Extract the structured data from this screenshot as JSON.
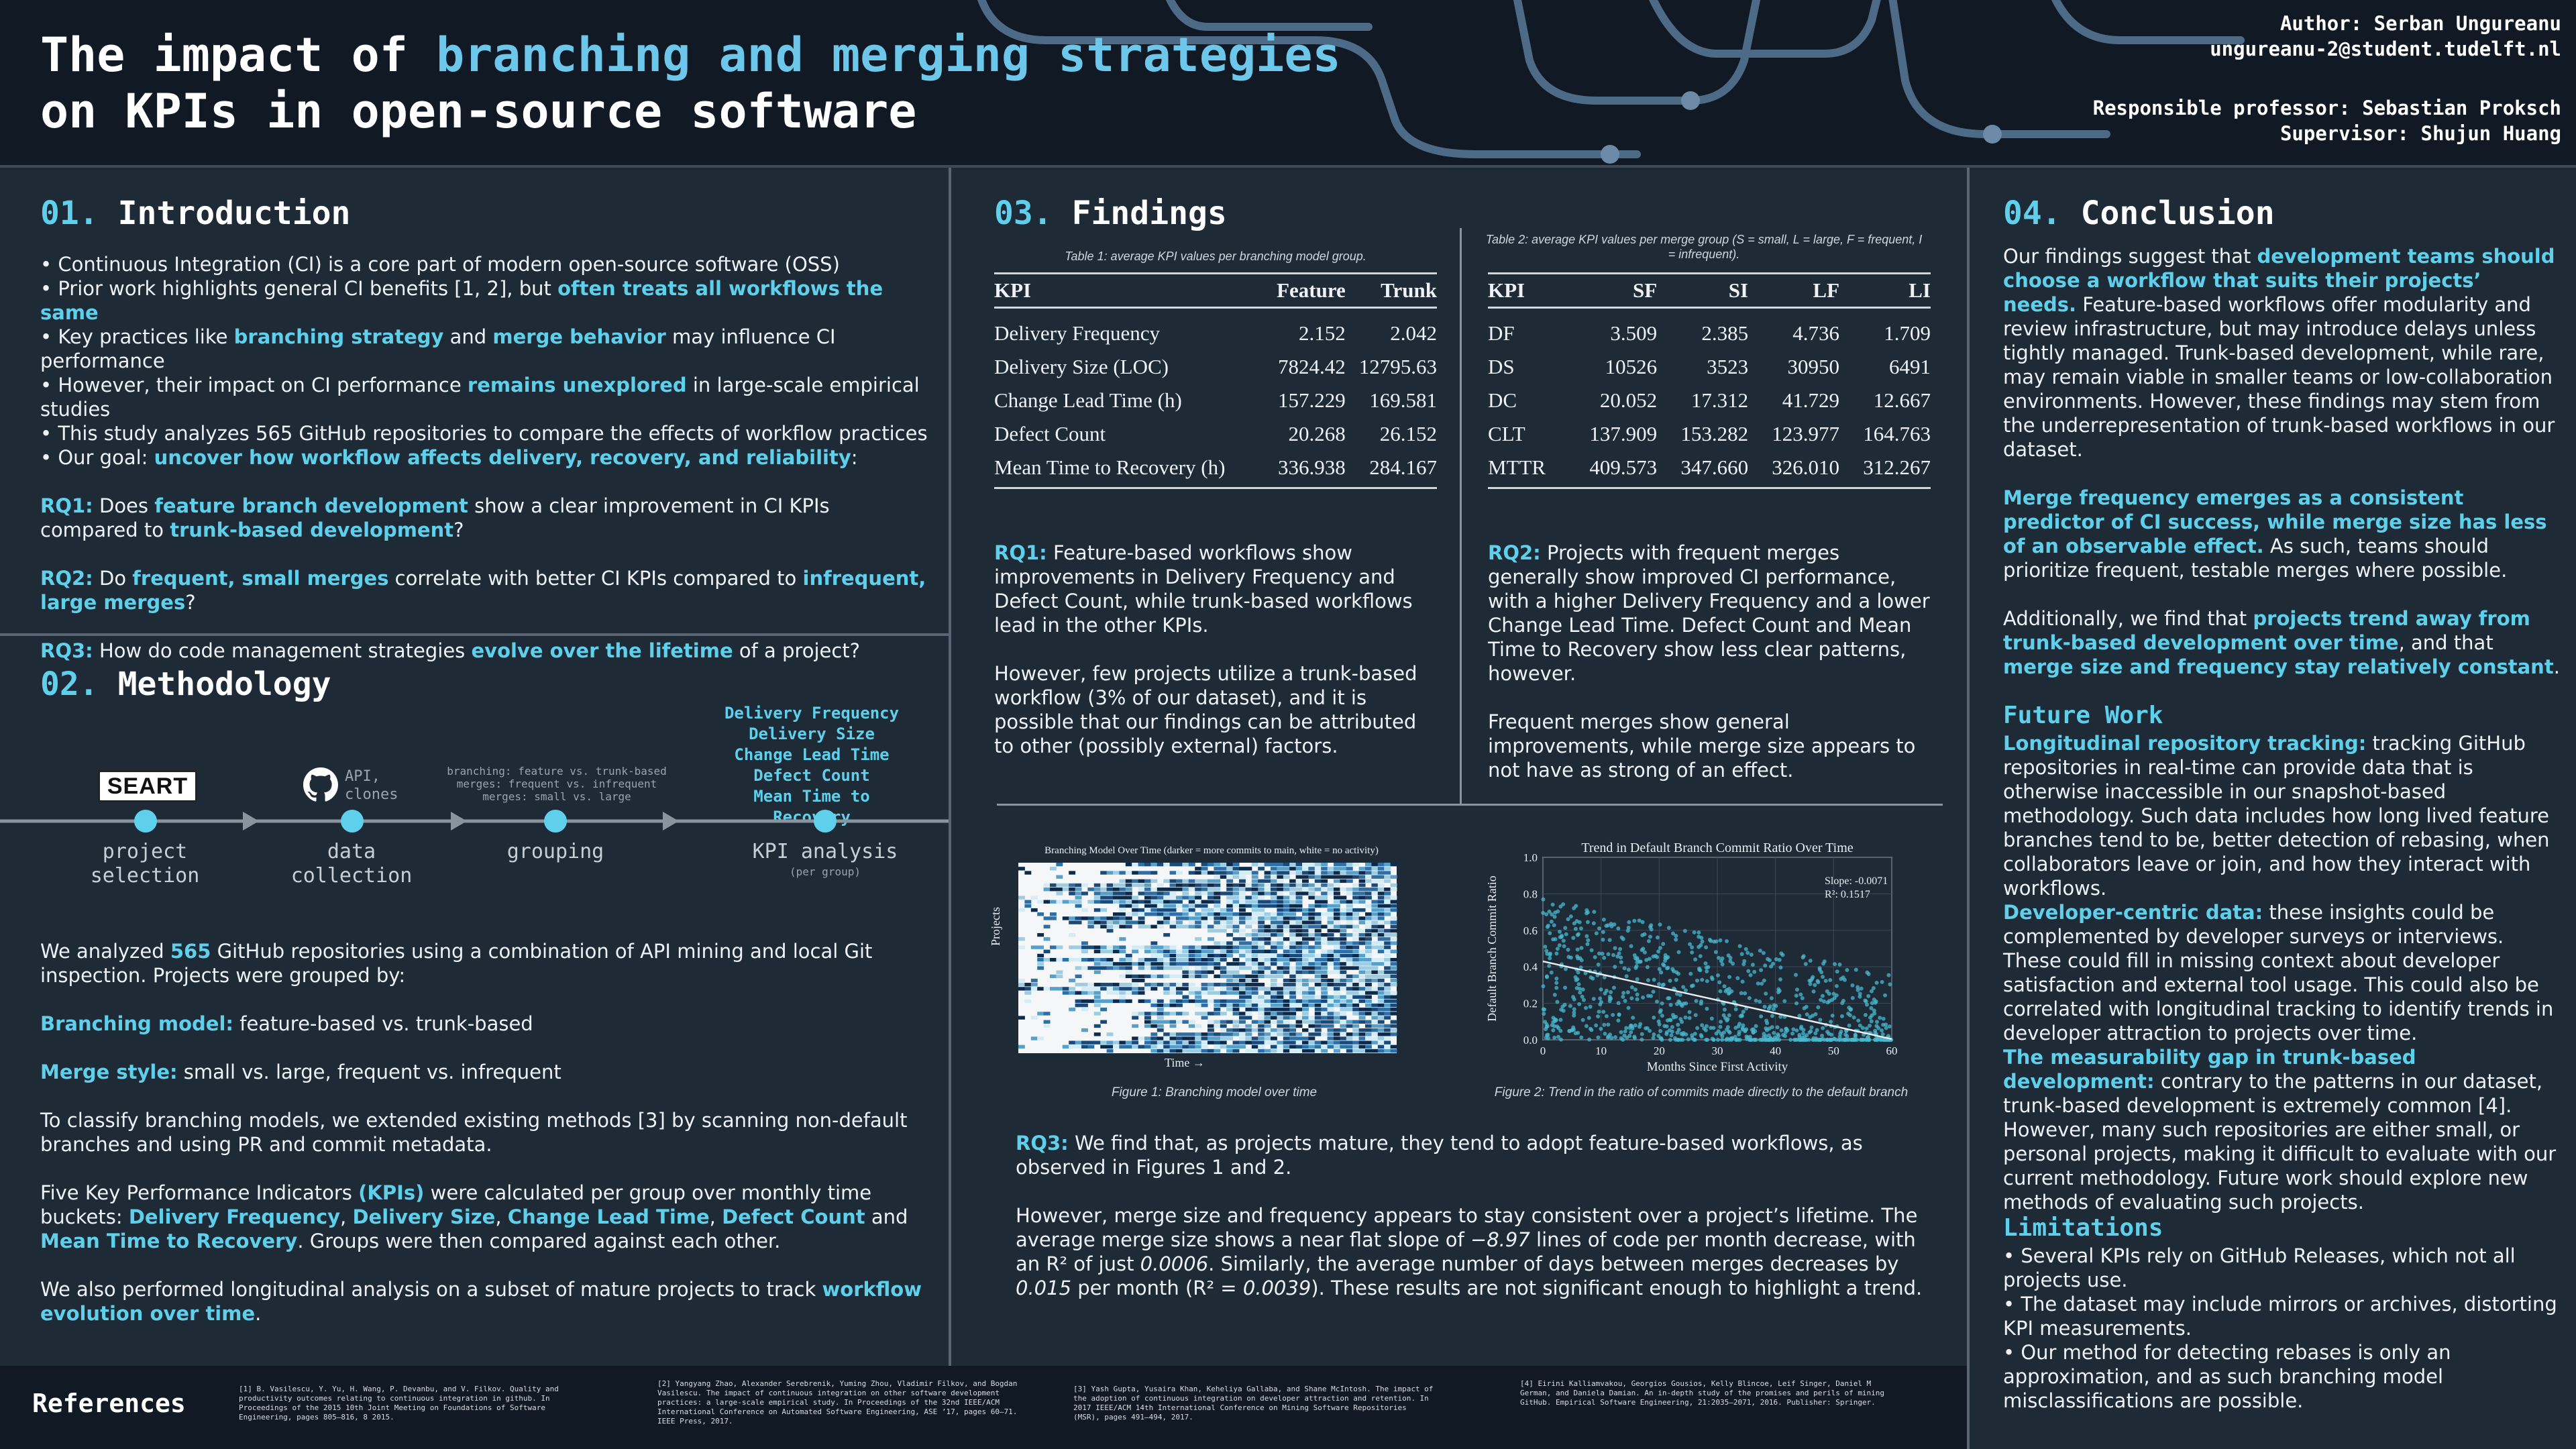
{
  "header": {
    "title_line1_a": "The impact of ",
    "title_line1_b": "branching and merging strategies",
    "title_line2": "on KPIs in open-source software",
    "author_label": "Author:",
    "author_name": "Serban Ungureanu",
    "author_email": "ungureanu-2@student.tudelft.nl",
    "professor_label": "Responsible professor:",
    "professor_name": "Sebastian Proksch",
    "supervisor_label": "Supervisor:",
    "supervisor_name": "Shujun Huang"
  },
  "intro": {
    "num": "01.",
    "title": "Introduction",
    "bullets": [
      [
        "Continuous Integration (CI) is a core part of modern open-source software (OSS)"
      ],
      [
        "Prior work highlights general CI benefits [1, 2], but ",
        "often treats all workflows the same"
      ],
      [
        "Key practices like ",
        "branching strategy",
        " and ",
        "merge behavior",
        " may influence CI performance"
      ],
      [
        "However, their impact on CI performance ",
        "remains unexplored",
        " in large-scale empirical studies"
      ],
      [
        "This study analyzes 565 GitHub repositories to compare the effects of workflow practices"
      ],
      [
        "Our goal: ",
        "uncover how workflow affects delivery, recovery, and reliability",
        ":"
      ]
    ],
    "rq1": [
      "RQ1:",
      " Does ",
      "feature branch development",
      " show a clear improvement in CI KPIs compared to ",
      "trunk-based development",
      "?"
    ],
    "rq2": [
      "RQ2:",
      " Do ",
      "frequent, small merges",
      " correlate with better CI KPIs compared to ",
      "infrequent, large merges",
      "?"
    ],
    "rq3": [
      "RQ3:",
      " How do code management strategies ",
      "evolve over the lifetime",
      " of a project?"
    ]
  },
  "method": {
    "num": "02.",
    "title": "Methodology",
    "seart_logo": "SEART",
    "api_text": "API,\nclones",
    "grouping_note": "branching: feature vs. trunk-based\nmerges: frequent vs. infrequent\nmerges: small vs. large",
    "kpi_list": [
      "Delivery Frequency",
      "Delivery Size",
      "Change Lead Time",
      "Defect Count",
      "Mean Time to Recovery"
    ],
    "steps": [
      "project\nselection",
      "data\ncollection",
      "grouping",
      "KPI analysis"
    ],
    "kpi_sub": "(per group)",
    "p1": [
      "We analyzed ",
      "565",
      " GitHub repositories using a combination of API mining and local Git inspection. Projects were grouped by:"
    ],
    "p2": [
      "Branching model:",
      " feature-based vs. trunk-based"
    ],
    "p3": [
      "Merge style:",
      " small vs. large, frequent vs. infrequent"
    ],
    "p4": "To classify branching models, we extended existing methods [3] by scanning non-default branches and using PR and commit metadata.",
    "p5": [
      "Five Key Performance Indicators ",
      "(KPIs)",
      " were calculated per group over monthly time buckets: ",
      "Delivery Frequency",
      ", ",
      "Delivery Size",
      ", ",
      "Change Lead Time",
      ", ",
      "Defect Count",
      " and ",
      "Mean Time to Recovery",
      ". Groups were then compared against each other."
    ],
    "p6": [
      "We also performed longitudinal analysis on a subset of mature projects to track ",
      "workflow evolution over time",
      "."
    ]
  },
  "findings": {
    "num": "03.",
    "title": "Findings",
    "table1_caption": "Table 1: average KPI values  per branching model group.",
    "table1_headers": [
      "KPI",
      "Feature",
      "Trunk"
    ],
    "table1_rows": [
      [
        "Delivery Frequency",
        "2.152",
        "2.042"
      ],
      [
        "Delivery Size (LOC)",
        "7824.42",
        "12795.63"
      ],
      [
        "Change Lead Time (h)",
        "157.229",
        "169.581"
      ],
      [
        "Defect Count",
        "20.268",
        "26.152"
      ],
      [
        "Mean Time to Recovery (h)",
        "336.938",
        "284.167"
      ]
    ],
    "table2_caption": "Table 2: average KPI values  per merge group (S = small, L = large, F = frequent, I = infrequent).",
    "table2_headers": [
      "KPI",
      "SF",
      "SI",
      "LF",
      "LI"
    ],
    "table2_rows": [
      [
        "DF",
        "3.509",
        "2.385",
        "4.736",
        "1.709"
      ],
      [
        "DS",
        "10526",
        "3523",
        "30950",
        "6491"
      ],
      [
        "DC",
        "20.052",
        "17.312",
        "41.729",
        "12.667"
      ],
      [
        "CLT",
        "137.909",
        "153.282",
        "123.977",
        "164.763"
      ],
      [
        "MTTR",
        "409.573",
        "347.660",
        "326.010",
        "312.267"
      ]
    ],
    "rq1_text": [
      "RQ1:",
      " Feature-based workflows show improvements in Delivery Frequency and Defect Count, while trunk-based workflows lead in the other KPIs."
    ],
    "rq1_text2": "However, few projects utilize a trunk-based workflow (3% of our dataset), and it is possible that our findings can be attributed to other (possibly external) factors.",
    "rq2_text": [
      "RQ2:",
      " Projects with frequent merges generally show improved CI performance, with a higher Delivery Frequency and a lower Change Lead Time. Defect Count and Mean Time to Recovery show less clear patterns, however."
    ],
    "rq2_text2": "Frequent merges show general improvements, while merge size appears to not have as strong of an effect.",
    "fig1_title": "Branching Model Over Time (darker = more commits to main, white = no activity)",
    "fig1_ylabel": "Projects",
    "fig1_xlabel": "Time →",
    "fig1_caption": "Figure 1: Branching model over time",
    "fig2_title": "Trend in Default Branch Commit Ratio Over Time",
    "fig2_ylabel": "Default Branch Commit Ratio",
    "fig2_xlabel": "Months Since First Activity",
    "fig2_caption": "Figure 2: Trend in the ratio of commits made directly to the default branch",
    "fig2_slope": "Slope: -0.0071",
    "fig2_r2": "R²: 0.1517",
    "rq3_text": [
      "RQ3:",
      " We find that, as projects mature, they tend to adopt feature-based workflows, as observed in Figures 1 and 2."
    ],
    "rq3_text2_a": "However, merge size and frequency appears to  stay consistent over a project’s lifetime. The average merge size shows a near flat slope of ",
    "rq3_slope": "−8.97",
    "rq3_text2_b": " lines of code per month decrease, with an R² of just ",
    "rq3_r2a": "0.0006",
    "rq3_text2_c": ". Similarly, the average number of days between merges decreases by ",
    "rq3_dec": "0.015",
    "rq3_text2_d": " per month (R² = ",
    "rq3_r2b": "0.0039",
    "rq3_text2_e": "). These results are not significant enough to highlight a trend."
  },
  "chart_data": [
    {
      "type": "heatmap",
      "title": "Branching Model Over Time (darker = more commits to main, white = no activity)",
      "xlabel": "Time →",
      "ylabel": "Projects"
    },
    {
      "type": "scatter",
      "title": "Trend in Default Branch Commit Ratio Over Time",
      "xlabel": "Months Since First Activity",
      "ylabel": "Default Branch Commit Ratio",
      "xlim": [
        0,
        60
      ],
      "ylim": [
        0.0,
        1.0
      ],
      "xticks": [
        "0",
        "10",
        "20",
        "30",
        "40",
        "50",
        "60"
      ],
      "yticks": [
        "0.0",
        "0.2",
        "0.4",
        "0.6",
        "0.8",
        "1.0"
      ],
      "trend_line": {
        "slope": -0.0071,
        "intercept": 0.43,
        "r2": 0.1517
      },
      "grid": true
    }
  ],
  "conclusion": {
    "num": "04.",
    "title": "Conclusion",
    "p1": [
      "Our findings suggest that ",
      "development teams should choose a workflow that suits their projects’ needs.",
      " Feature-based workflows offer modularity and review infrastructure, but may introduce delays unless tightly managed. Trunk-based development, while rare, may remain viable in smaller teams or low-collaboration environments. However, these findings may stem from the underrepresentation of trunk-based workflows in our dataset."
    ],
    "p2": [
      "Merge frequency emerges as a consistent predictor of CI success, while merge size has less of an observable effect.",
      " As such, teams should prioritize frequent, testable merges where possible."
    ],
    "p3": [
      "Additionally, we find that ",
      "projects trend away from trunk-based development over time",
      ", and that ",
      "merge size and frequency stay relatively constant",
      "."
    ],
    "future_title": "Future Work",
    "fw1": [
      "Longitudinal repository tracking:",
      " tracking GitHub repositories in real-time can provide data that is otherwise inaccessible in our snapshot-based methodology. Such data includes how long lived feature branches tend to be, better detection of rebasing, when collaborators leave or join, and how they interact with workflows."
    ],
    "fw2": [
      "Developer-centric data:",
      " these insights could be complemented by developer surveys or interviews. These could fill in missing context about developer satisfaction and external tool usage. This could also be correlated with longitudinal tracking to identify trends in developer attraction to projects over time."
    ],
    "fw3": [
      "The measurability gap in trunk-based development:",
      " contrary to the patterns in our dataset, trunk-based development is extremely common [4]. However, many such repositories are either small, or personal projects, making it difficult to evaluate with our current methodology. Future work should explore new methods of evaluating such projects."
    ],
    "limits_title": "Limitations",
    "limits": [
      "Several KPIs rely on GitHub Releases, which not all projects use.",
      "The dataset may include mirrors or archives, distorting KPI measurements.",
      "Our method for detecting rebases is only an approximation, and as such branching model misclassifications are possible."
    ]
  },
  "references": {
    "title": "References",
    "items": [
      "[1] B. Vasilescu, Y. Yu, H. Wang, P. Devanbu, and V. Filkov. Quality and productivity outcomes relating to continuous integration in github. In Proceedings of the 2015 10th Joint Meeting on Foundations of Software Engineering, pages 805–816, 8 2015.",
      "[2] Yangyang Zhao, Alexander Serebrenik, Yuming Zhou, Vladimir Filkov, and Bogdan Vasilescu. The impact of continuous integration on other software development practices: a large-scale empirical study. In Proceedings of the 32nd IEEE/ACM International Conference on Automated Software Engineering, ASE ’17, pages 60–71. IEEE Press, 2017.",
      "[3] Yash Gupta, Yusaira Khan, Keheliya Gallaba, and Shane McIntosh. The impact of the adoption of continuous integration on developer attraction and retention. In 2017 IEEE/ACM 14th International Conference on Mining Software Repositories (MSR), pages 491–494, 2017.",
      "[4] Eirini Kalliamvakou, Georgios Gousios, Kelly Blincoe, Leif Singer, Daniel M German, and Daniela Damian. An in-depth study of the promises and perils of mining GitHub. Empirical Software Engineering, 21:2035–2071, 2016. Publisher: Springer."
    ]
  },
  "colors": {
    "accent": "#5fd0ec",
    "background": "#1e2a36",
    "header": "#111a24"
  }
}
